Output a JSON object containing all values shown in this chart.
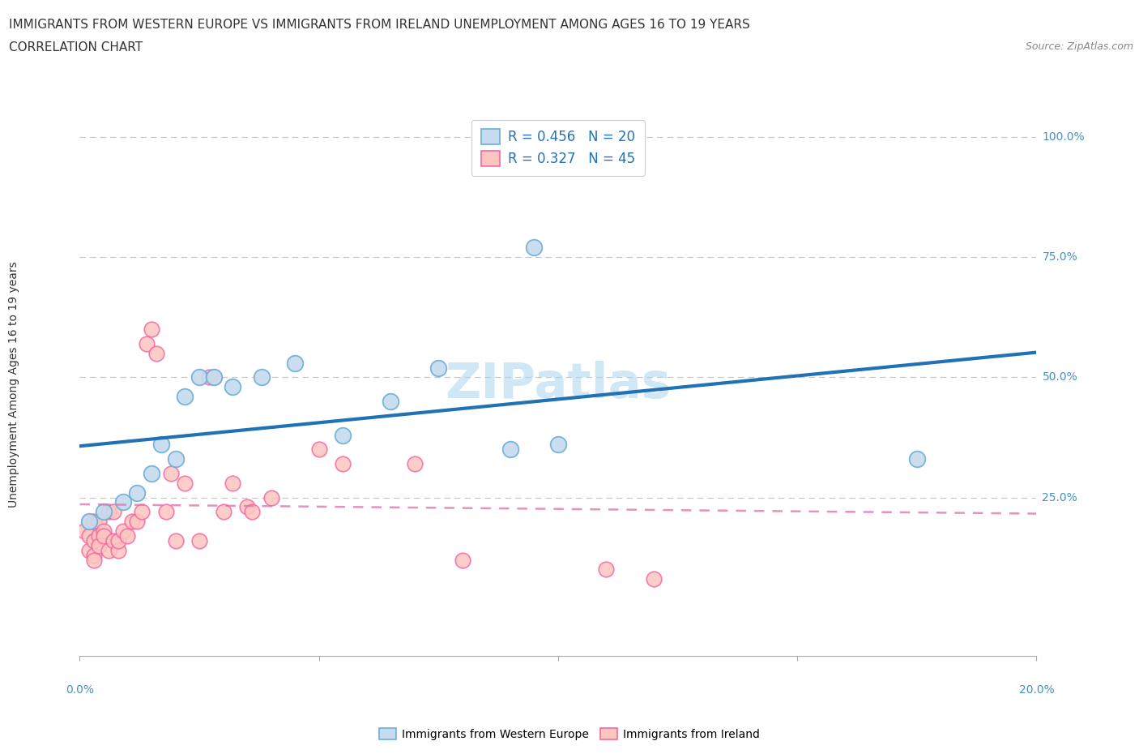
{
  "title": "IMMIGRANTS FROM WESTERN EUROPE VS IMMIGRANTS FROM IRELAND UNEMPLOYMENT AMONG AGES 16 TO 19 YEARS",
  "subtitle": "CORRELATION CHART",
  "source": "Source: ZipAtlas.com",
  "ylabel_label": "Unemployment Among Ages 16 to 19 years",
  "watermark": "ZIPatlas",
  "legend1_R": "0.456",
  "legend1_N": "20",
  "legend2_R": "0.327",
  "legend2_N": "45",
  "blue_color": "#6baed6",
  "blue_fill": "#c6dbef",
  "pink_color": "#f768a1",
  "pink_fill": "#fcc5c0",
  "trendline_blue_color": "#2171b5",
  "trendline_pink_color": "#de77ae",
  "note": "x axis = proportion of immigrants (0 to 20%), y axis = unemployment rate (0 to 100%)",
  "blue_points": [
    [
      0.002,
      0.2
    ],
    [
      0.005,
      0.22
    ],
    [
      0.009,
      0.24
    ],
    [
      0.012,
      0.26
    ],
    [
      0.015,
      0.3
    ],
    [
      0.017,
      0.36
    ],
    [
      0.02,
      0.33
    ],
    [
      0.022,
      0.46
    ],
    [
      0.025,
      0.5
    ],
    [
      0.028,
      0.5
    ],
    [
      0.032,
      0.48
    ],
    [
      0.038,
      0.5
    ],
    [
      0.045,
      0.53
    ],
    [
      0.055,
      0.38
    ],
    [
      0.065,
      0.45
    ],
    [
      0.075,
      0.52
    ],
    [
      0.09,
      0.35
    ],
    [
      0.095,
      0.77
    ],
    [
      0.1,
      0.36
    ],
    [
      0.175,
      0.33
    ]
  ],
  "pink_points": [
    [
      0.001,
      0.18
    ],
    [
      0.002,
      0.17
    ],
    [
      0.002,
      0.14
    ],
    [
      0.002,
      0.2
    ],
    [
      0.003,
      0.16
    ],
    [
      0.003,
      0.13
    ],
    [
      0.003,
      0.12
    ],
    [
      0.003,
      0.2
    ],
    [
      0.004,
      0.17
    ],
    [
      0.004,
      0.15
    ],
    [
      0.004,
      0.2
    ],
    [
      0.005,
      0.18
    ],
    [
      0.005,
      0.17
    ],
    [
      0.006,
      0.14
    ],
    [
      0.006,
      0.22
    ],
    [
      0.007,
      0.22
    ],
    [
      0.007,
      0.16
    ],
    [
      0.008,
      0.14
    ],
    [
      0.008,
      0.16
    ],
    [
      0.009,
      0.18
    ],
    [
      0.01,
      0.17
    ],
    [
      0.011,
      0.2
    ],
    [
      0.012,
      0.2
    ],
    [
      0.013,
      0.22
    ],
    [
      0.014,
      0.57
    ],
    [
      0.015,
      0.6
    ],
    [
      0.016,
      0.55
    ],
    [
      0.018,
      0.22
    ],
    [
      0.019,
      0.3
    ],
    [
      0.02,
      0.16
    ],
    [
      0.022,
      0.28
    ],
    [
      0.025,
      0.16
    ],
    [
      0.027,
      0.5
    ],
    [
      0.028,
      0.5
    ],
    [
      0.03,
      0.22
    ],
    [
      0.032,
      0.28
    ],
    [
      0.035,
      0.23
    ],
    [
      0.036,
      0.22
    ],
    [
      0.04,
      0.25
    ],
    [
      0.05,
      0.35
    ],
    [
      0.055,
      0.32
    ],
    [
      0.07,
      0.32
    ],
    [
      0.08,
      0.12
    ],
    [
      0.11,
      0.1
    ],
    [
      0.12,
      0.08
    ]
  ],
  "xlim": [
    0.0,
    0.2
  ],
  "ylim": [
    -0.08,
    1.05
  ],
  "ytick_vals": [
    0.0,
    0.25,
    0.5,
    0.75,
    1.0
  ],
  "ytick_labels": [
    "",
    "25.0%",
    "50.0%",
    "75.0%",
    "100.0%"
  ],
  "xtick_vals": [
    0.0,
    0.05,
    0.1,
    0.15,
    0.2
  ],
  "grid_color": "#c8c8c8",
  "background_color": "#ffffff"
}
